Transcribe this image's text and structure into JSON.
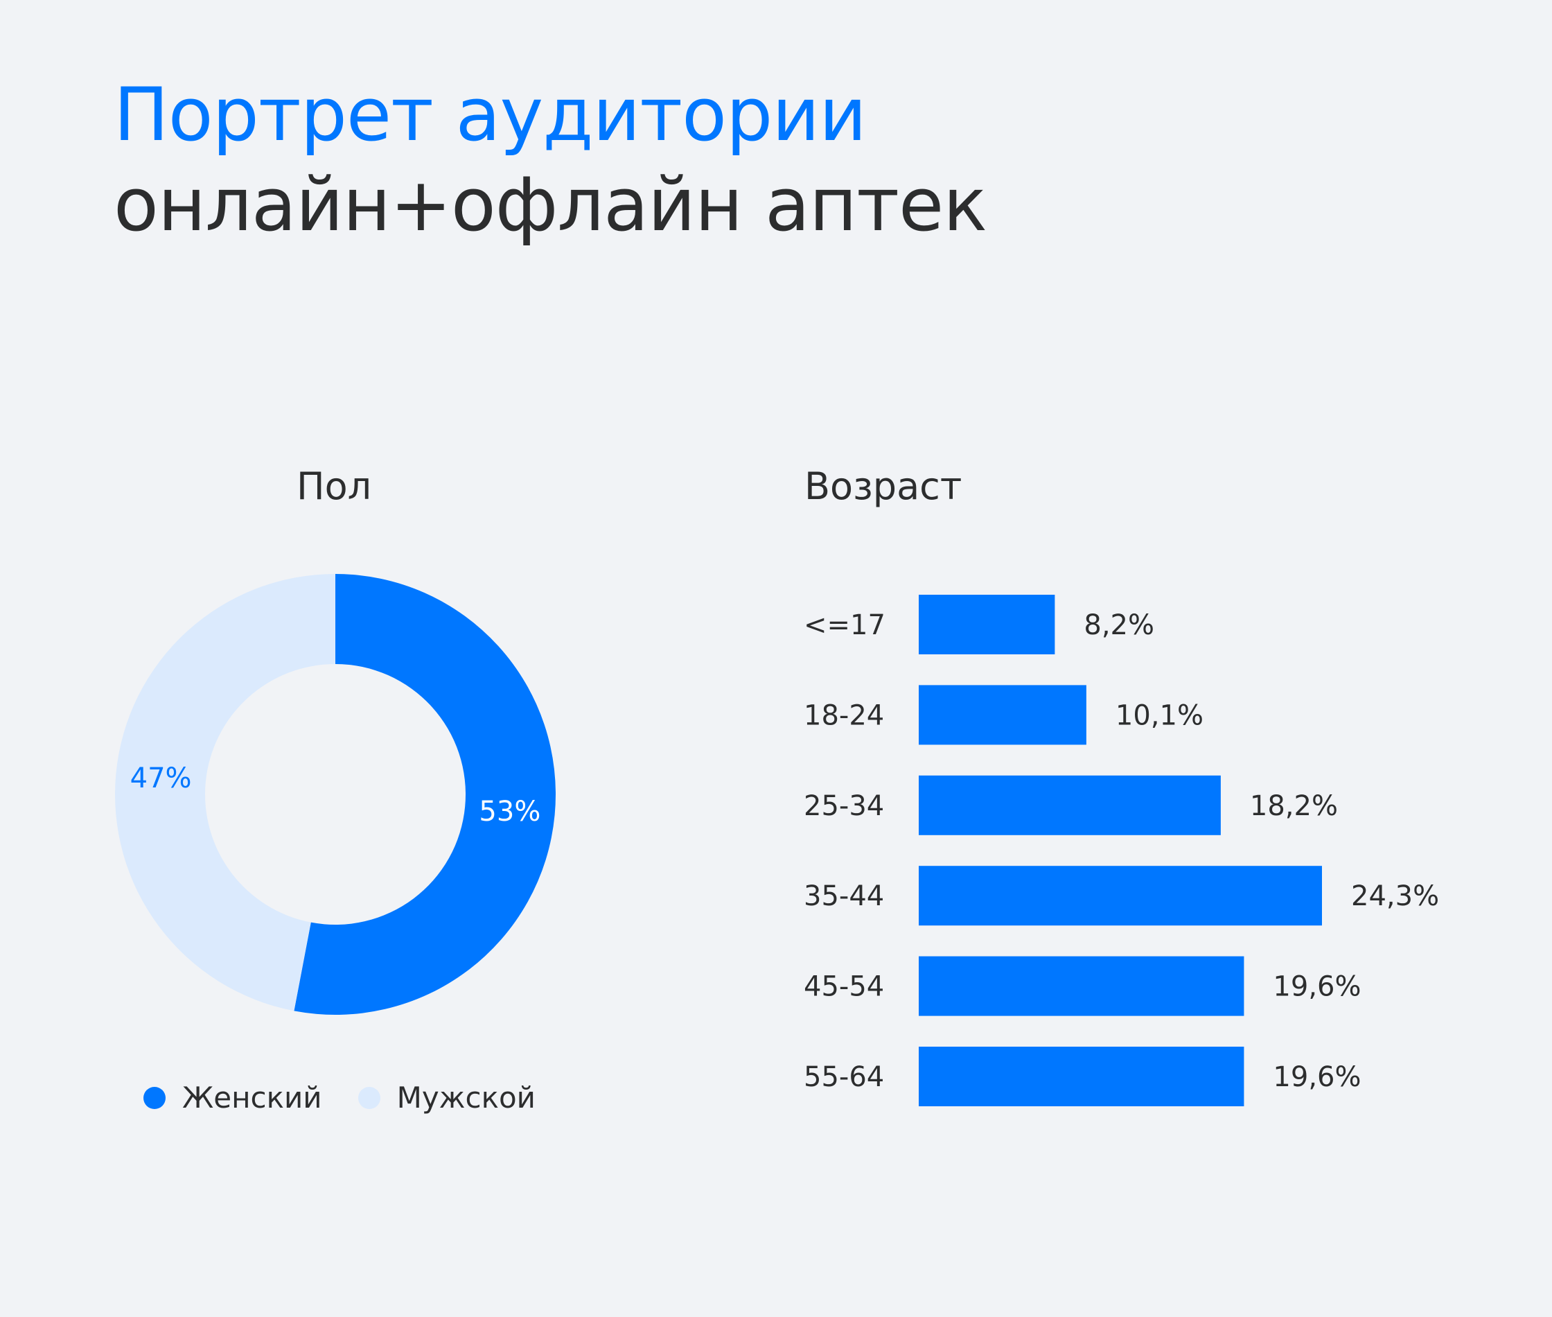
{
  "title": {
    "line1": "Портрет аудитории",
    "line2": "онлайн+офлайн аптек"
  },
  "colors": {
    "accent": "#0077ff",
    "light": "#dbeafd",
    "text": "#2c2d2e",
    "background": "#f1f3f6"
  },
  "chart_data": [
    {
      "type": "pie",
      "title": "Пол",
      "categories": [
        "Женский",
        "Мужской"
      ],
      "values": [
        53,
        47
      ],
      "labels": [
        "53%",
        "47%"
      ],
      "colors": [
        "#0077ff",
        "#dbeafd"
      ],
      "legend": "bottom"
    },
    {
      "type": "bar",
      "orientation": "horizontal",
      "title": "Возраст",
      "categories": [
        "<=17",
        "18-24",
        "25-34",
        "35-44",
        "45-54",
        "55-64"
      ],
      "values": [
        8.2,
        10.1,
        18.2,
        24.3,
        19.6,
        19.6
      ],
      "labels": [
        "8,2%",
        "10,1%",
        "18,2%",
        "24,3%",
        "19,6%",
        "19,6%"
      ],
      "color": "#0077ff"
    }
  ]
}
